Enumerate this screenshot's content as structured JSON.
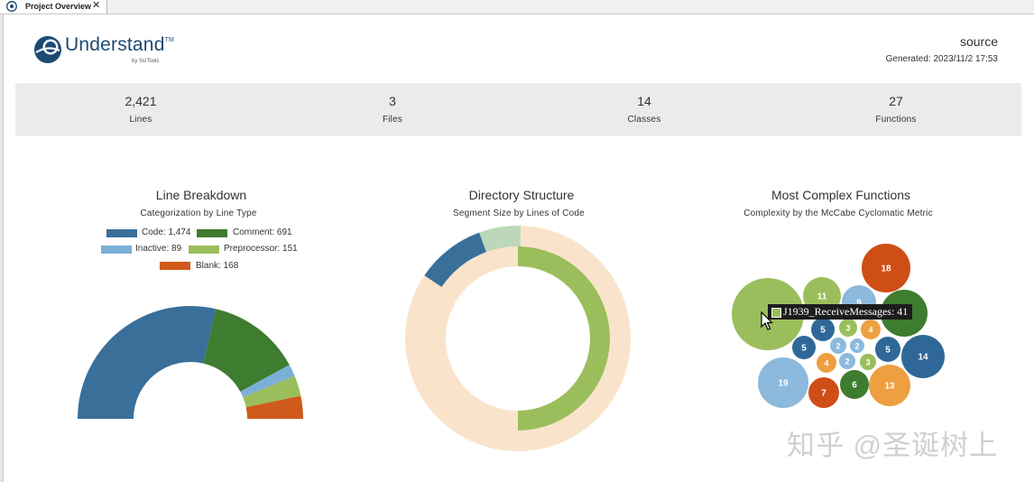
{
  "tab": {
    "title": "Project Overview",
    "icon": "understand-icon",
    "close": "✕"
  },
  "logo": {
    "name": "Understand",
    "tm": "TM",
    "sub": "by SciTools"
  },
  "header": {
    "source": "source",
    "generated": "Generated: 2023/11/2 17:53"
  },
  "stats": [
    {
      "value": "2,421",
      "label": "Lines"
    },
    {
      "value": "3",
      "label": "Files"
    },
    {
      "value": "14",
      "label": "Classes"
    },
    {
      "value": "27",
      "label": "Functions"
    }
  ],
  "panels": {
    "line_breakdown": {
      "title": "Line Breakdown",
      "subtitle": "Categorization by Line Type"
    },
    "directory": {
      "title": "Directory Structure",
      "subtitle": "Segment Size by Lines of Code"
    },
    "complex": {
      "title": "Most Complex Functions",
      "subtitle": "Complexity by the McCabe Cyclomatic Metric"
    }
  },
  "tooltip": {
    "text": "J1939_ReceiveMessages: 41",
    "color": "#99bd5d"
  },
  "watermark": "知乎 @圣诞树上",
  "chart_data": [
    {
      "type": "pie",
      "title": "Line Breakdown",
      "subtitle": "Categorization by Line Type",
      "legend": "top",
      "categories": [
        "Code",
        "Comment",
        "Inactive",
        "Preprocessor",
        "Blank"
      ],
      "legend_labels": [
        "Code: 1,474",
        "Comment: 691",
        "Inactive: 89",
        "Preprocessor: 151",
        "Blank: 168"
      ],
      "values": [
        1474,
        691,
        89,
        151,
        168
      ],
      "colors": [
        "#3a6f9a",
        "#3e7c2f",
        "#7ab0d8",
        "#9bbe5c",
        "#cf5a1c"
      ]
    },
    {
      "type": "pie",
      "title": "Directory Structure",
      "subtitle": "Segment Size by Lines of Code",
      "rings": [
        {
          "values": [
            1,
            1
          ],
          "colors": [
            "#9bbe5c",
            "#f9e4cb"
          ],
          "label_hidden": true
        },
        {
          "values": [
            0.1,
            0.06,
            0.84
          ],
          "colors": [
            "#3a6f9a",
            "#bcd8b8",
            "#f9e4cb"
          ]
        }
      ]
    },
    {
      "type": "scatter",
      "title": "Most Complex Functions",
      "subtitle": "Complexity by the McCabe Cyclomatic Metric",
      "bubbles": [
        {
          "value": 41,
          "label": "",
          "color": "#9bbe5c"
        },
        {
          "value": 18,
          "label": "18",
          "color": "#cf4e16"
        },
        {
          "value": 19,
          "label": "19",
          "color": "#8cb9dc"
        },
        {
          "value": 14,
          "label": "14",
          "color": "#2f6898"
        },
        {
          "value": 13,
          "label": "13",
          "color": "#eea040"
        },
        {
          "value": 11,
          "label": "11",
          "color": "#9bbe5c"
        },
        {
          "value": 9,
          "label": "9",
          "color": "#8cb9dc"
        },
        {
          "value": 7,
          "label": "7",
          "color": "#cf4e16"
        },
        {
          "value": 6,
          "label": "6",
          "color": "#3e7c2f"
        },
        {
          "value": 5,
          "label": "5",
          "color": "#2f6898"
        },
        {
          "value": 5,
          "label": "5",
          "color": "#2f6898"
        },
        {
          "value": 5,
          "label": "5",
          "color": "#2f6898"
        },
        {
          "value": 4,
          "label": "4",
          "color": "#eea040"
        },
        {
          "value": 4,
          "label": "4",
          "color": "#eea040"
        },
        {
          "value": 3,
          "label": "3",
          "color": "#9bbe5c"
        },
        {
          "value": 3,
          "label": "3",
          "color": "#9bbe5c"
        },
        {
          "value": 2,
          "label": "2",
          "color": "#8cb9dc"
        },
        {
          "value": 2,
          "label": "2",
          "color": "#8cb9dc"
        },
        {
          "value": 2,
          "label": "2",
          "color": "#8cb9dc"
        },
        {
          "value": 20,
          "label": "",
          "color": "#3e7c2f"
        }
      ]
    }
  ]
}
